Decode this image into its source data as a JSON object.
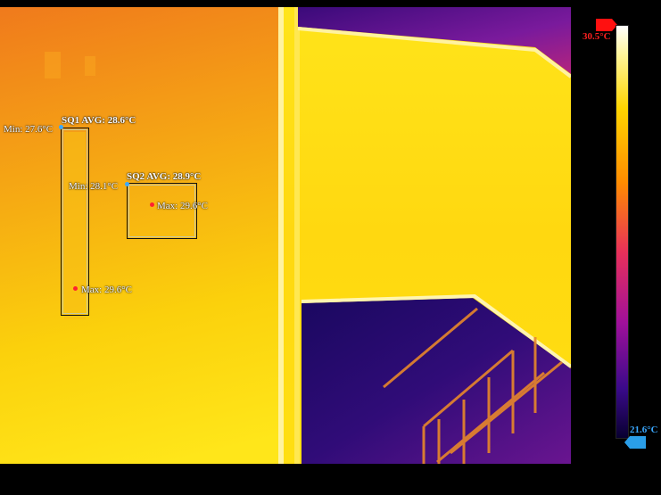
{
  "scale": {
    "max_label": "30.5°C",
    "min_label": "21.6°C",
    "max_color": "#ff2020",
    "min_color": "#3aa8ff"
  },
  "sq1": {
    "avg_label": "SQ1 AVG: 28.6°C",
    "min_label": "Min: 27.6°C",
    "max_label": "Max: 29.6°C"
  },
  "sq2": {
    "avg_label": "SQ2 AVG: 28.9°C",
    "min_label": "Min: 28.1°C",
    "max_label": "Max: 29.6°C"
  }
}
